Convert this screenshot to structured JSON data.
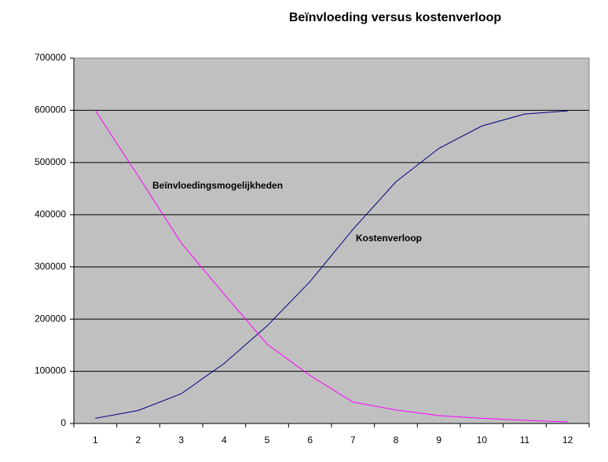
{
  "chart_data": {
    "type": "line",
    "title": "Beïnvloeding versus kostenverloop",
    "categories": [
      "1",
      "2",
      "3",
      "4",
      "5",
      "6",
      "7",
      "8",
      "9",
      "10",
      "11",
      "12"
    ],
    "series": [
      {
        "name": "Kostenverloop",
        "color": "#000080",
        "values": [
          10000,
          25000,
          57000,
          115000,
          187000,
          272000,
          372000,
          463000,
          527000,
          570000,
          593000,
          599000
        ]
      },
      {
        "name": "Beïnvloedingsmogelijkheden",
        "color": "#ff00ff",
        "values": [
          600000,
          474000,
          346000,
          248000,
          152000,
          92000,
          41000,
          26000,
          15000,
          10000,
          6000,
          3000
        ]
      }
    ],
    "ylim": [
      0,
      700000
    ],
    "yticks": [
      0,
      100000,
      200000,
      300000,
      400000,
      500000,
      600000,
      700000
    ],
    "grid": true
  }
}
